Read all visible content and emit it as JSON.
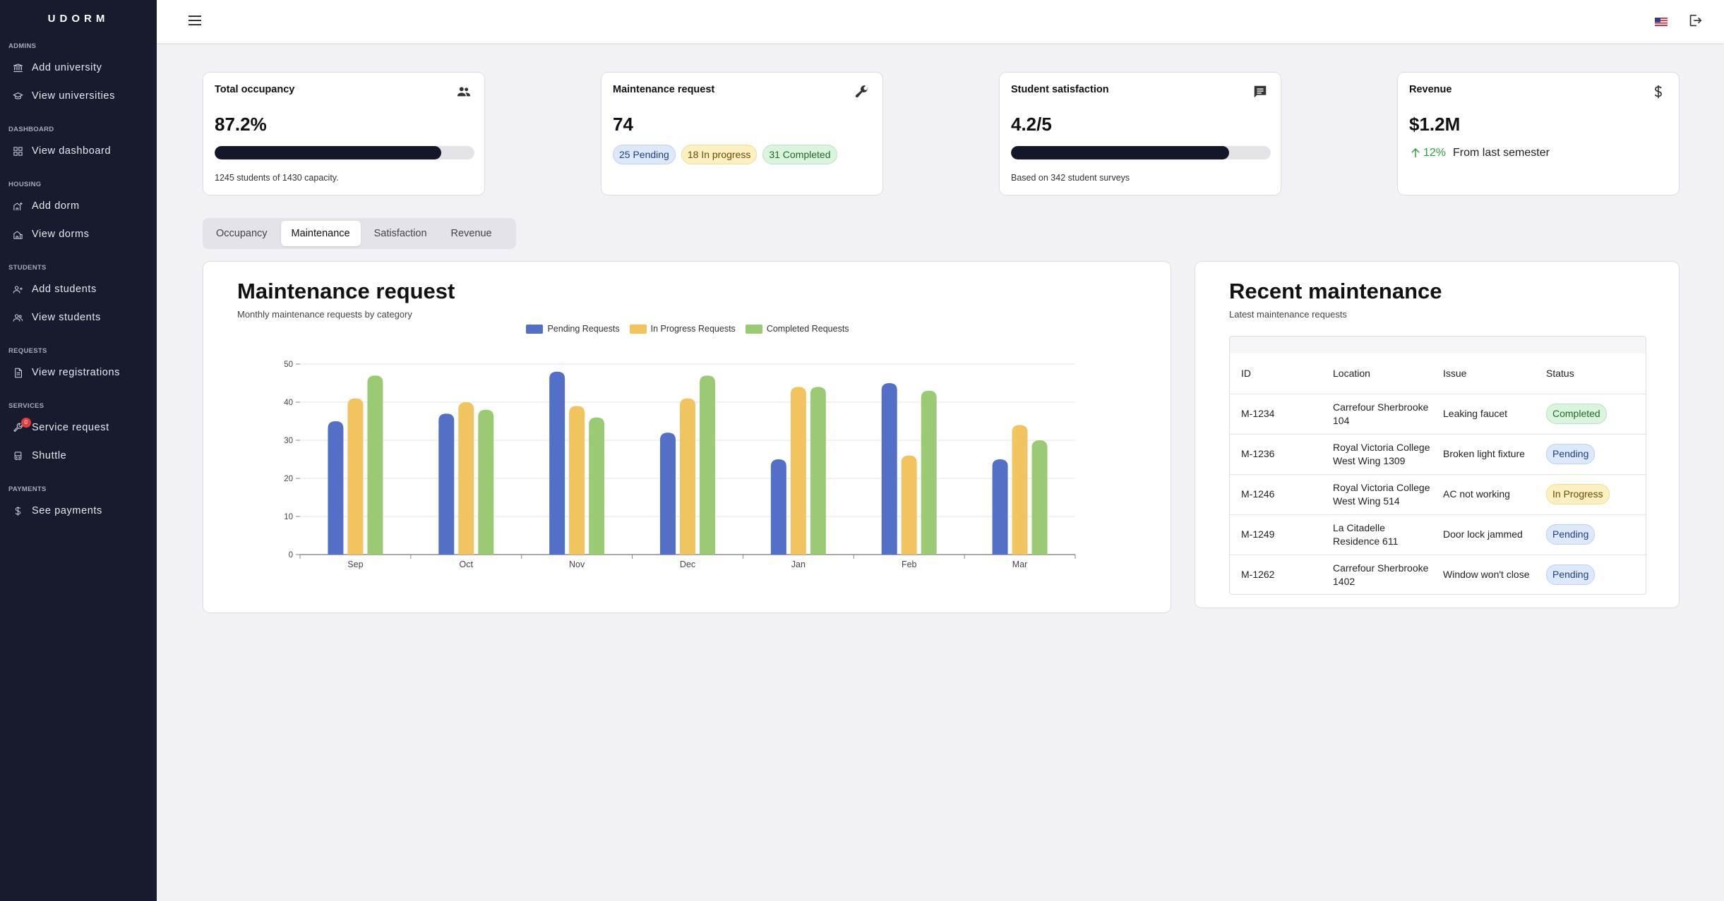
{
  "app": {
    "logo": "UDORM"
  },
  "sidebar": {
    "sections": [
      {
        "title": "ADMINS",
        "items": [
          {
            "label": "Add university",
            "icon": "university-icon"
          },
          {
            "label": "View universities",
            "icon": "graduation-cap-icon"
          }
        ]
      },
      {
        "title": "DASHBOARD",
        "items": [
          {
            "label": "View dashboard",
            "icon": "dashboard-grid-icon"
          }
        ]
      },
      {
        "title": "HOUSING",
        "items": [
          {
            "label": "Add dorm",
            "icon": "add-building-icon"
          },
          {
            "label": "View dorms",
            "icon": "building-icon"
          }
        ]
      },
      {
        "title": "STUDENTS",
        "items": [
          {
            "label": "Add students",
            "icon": "add-user-icon"
          },
          {
            "label": "View students",
            "icon": "users-icon"
          }
        ]
      },
      {
        "title": "REQUESTS",
        "items": [
          {
            "label": "View registrations",
            "icon": "document-icon"
          }
        ]
      },
      {
        "title": "SERVICES",
        "items": [
          {
            "label": "Service request",
            "icon": "wrench-icon",
            "badge": "0"
          },
          {
            "label": "Shuttle",
            "icon": "bus-icon"
          }
        ]
      },
      {
        "title": "PAYMENTS",
        "items": [
          {
            "label": "See payments",
            "icon": "dollar-icon"
          }
        ]
      }
    ]
  },
  "stats": {
    "occupancy": {
      "title": "Total occupancy",
      "value": "87.2%",
      "progress": 0.872,
      "sub": "1245 students of 1430 capacity.",
      "icon": "users-icon"
    },
    "maintenance": {
      "title": "Maintenance request",
      "value": "74",
      "pending": "25 Pending",
      "in_progress": "18 In progress",
      "completed": "31 Completed",
      "icon": "wrench-icon"
    },
    "satisfaction": {
      "title": "Student satisfaction",
      "value": "4.2/5",
      "progress": 0.84,
      "sub": "Based on 342 student surveys",
      "icon": "chat-icon"
    },
    "revenue": {
      "title": "Revenue",
      "value": "$1.2M",
      "change": "12%",
      "change_text": "From last semester",
      "icon": "dollar-icon"
    }
  },
  "tabs": [
    {
      "label": "Occupancy",
      "active": false
    },
    {
      "label": "Maintenance",
      "active": true
    },
    {
      "label": "Satisfaction",
      "active": false
    },
    {
      "label": "Revenue",
      "active": false
    }
  ],
  "chart_card": {
    "title": "Maintenance request",
    "subtitle": "Monthly maintenance requests by category"
  },
  "chart_data": {
    "type": "bar",
    "categories": [
      "Sep",
      "Oct",
      "Nov",
      "Dec",
      "Jan",
      "Feb",
      "Mar"
    ],
    "series": [
      {
        "name": "Pending Requests",
        "color": "#5470c6",
        "values": [
          35,
          37,
          48,
          32,
          25,
          45,
          25
        ]
      },
      {
        "name": "In Progress Requests",
        "color": "#f2c45f",
        "values": [
          41,
          40,
          39,
          41,
          44,
          26,
          34
        ]
      },
      {
        "name": "Completed Requests",
        "color": "#9acb74",
        "values": [
          47,
          38,
          36,
          47,
          44,
          43,
          30
        ]
      }
    ],
    "yticks": [
      0,
      10,
      20,
      30,
      40,
      50
    ],
    "ylim": [
      0,
      50
    ],
    "legend_position": "top",
    "grid": true
  },
  "recent": {
    "title": "Recent maintenance",
    "subtitle": "Latest maintenance requests",
    "columns": [
      "ID",
      "Location",
      "Issue",
      "Status"
    ],
    "rows": [
      {
        "id": "M-1234",
        "location": "Carrefour Sherbrooke 104",
        "issue": "Leaking faucet",
        "status": "Completed"
      },
      {
        "id": "M-1236",
        "location": "Royal Victoria College West Wing 1309",
        "issue": "Broken light fixture",
        "status": "Pending"
      },
      {
        "id": "M-1246",
        "location": "Royal Victoria College West Wing 514",
        "issue": "AC not working",
        "status": "In Progress"
      },
      {
        "id": "M-1249",
        "location": "La Citadelle Residence 611",
        "issue": "Door lock jammed",
        "status": "Pending"
      },
      {
        "id": "M-1262",
        "location": "Carrefour Sherbrooke 1402",
        "issue": "Window won't close",
        "status": "Pending"
      }
    ]
  }
}
